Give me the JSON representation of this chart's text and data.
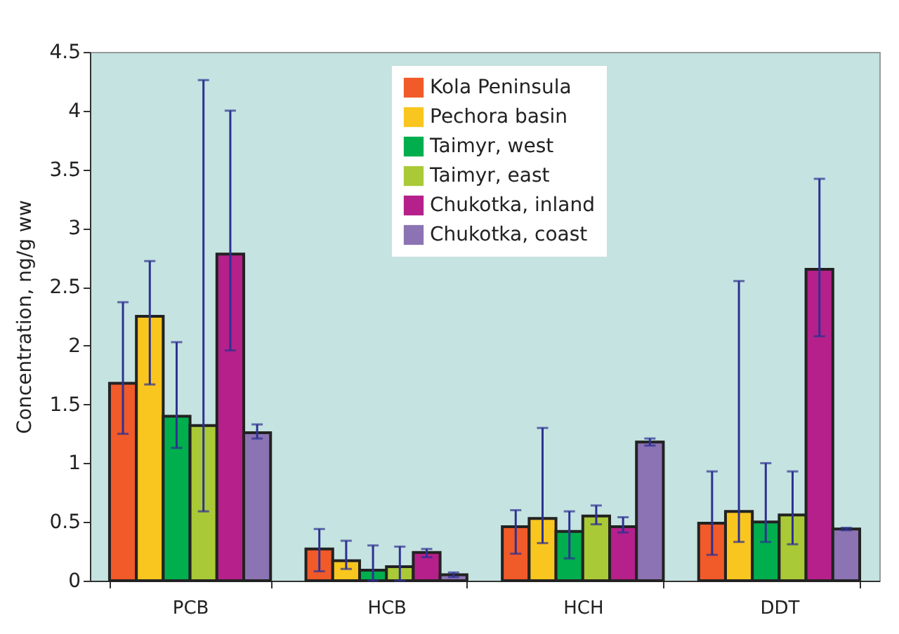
{
  "chart_data": {
    "type": "bar",
    "ylabel": "Concentration, ng/g ww",
    "categories": [
      "PCB",
      "HCB",
      "HCH",
      "DDT"
    ],
    "ylim": [
      0,
      4.5
    ],
    "yticks": [
      0,
      0.5,
      1,
      1.5,
      2,
      2.5,
      3,
      3.5,
      4,
      4.5
    ],
    "grid": false,
    "legend": "top right",
    "series": [
      {
        "name": "Kola Peninsula",
        "color": "#f15a29",
        "values": [
          1.68,
          0.27,
          0.46,
          0.49
        ],
        "errors": [
          [
            1.25,
            2.37
          ],
          [
            0.08,
            0.44
          ],
          [
            0.23,
            0.6
          ],
          [
            0.22,
            0.93
          ]
        ]
      },
      {
        "name": "Pechora basin",
        "color": "#f9c61f",
        "values": [
          2.25,
          0.17,
          0.53,
          0.59
        ],
        "errors": [
          [
            1.67,
            2.72
          ],
          [
            0.1,
            0.34
          ],
          [
            0.32,
            1.3
          ],
          [
            0.33,
            2.55
          ]
        ]
      },
      {
        "name": "Taimyr, west",
        "color": "#00ae4d",
        "values": [
          1.4,
          0.09,
          0.42,
          0.5
        ],
        "errors": [
          [
            1.13,
            2.03
          ],
          [
            0,
            0.3
          ],
          [
            0.19,
            0.59
          ],
          [
            0.33,
            1.0
          ]
        ]
      },
      {
        "name": "Taimyr, east",
        "color": "#aac937",
        "values": [
          1.32,
          0.12,
          0.55,
          0.56
        ],
        "errors": [
          [
            0.59,
            4.26
          ],
          [
            0,
            0.29
          ],
          [
            0.48,
            0.64
          ],
          [
            0.31,
            0.93
          ]
        ]
      },
      {
        "name": "Chukotka, inland",
        "color": "#b5208a",
        "values": [
          2.78,
          0.24,
          0.46,
          2.65
        ],
        "errors": [
          [
            1.96,
            4.0
          ],
          [
            0.2,
            0.27
          ],
          [
            0.41,
            0.54
          ],
          [
            2.08,
            3.42
          ]
        ]
      },
      {
        "name": "Chukotka, coast",
        "color": "#8c73b3",
        "values": [
          1.26,
          0.05,
          1.18,
          0.44
        ],
        "errors": [
          [
            1.21,
            1.33
          ],
          [
            0.03,
            0.07
          ],
          [
            1.15,
            1.21
          ],
          [
            0.43,
            0.45
          ]
        ]
      }
    ]
  }
}
